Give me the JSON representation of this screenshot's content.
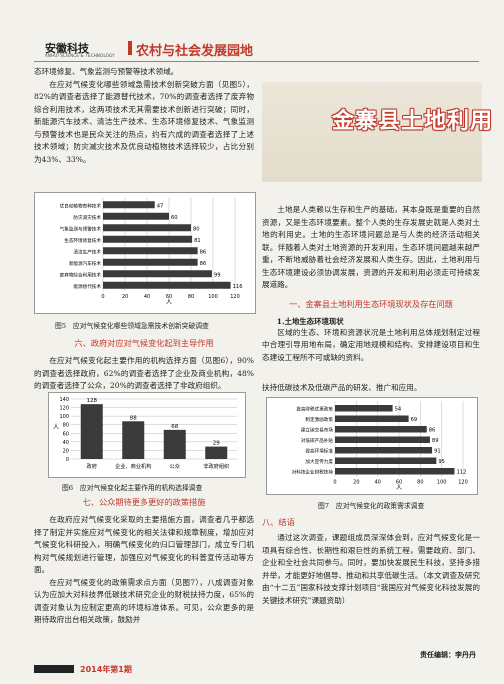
{
  "header": {
    "logo_cn": "安徽科技",
    "logo_en": "ANHUI SCIENCE & TECHNOLOGY",
    "section": "农村与社会发展园地"
  },
  "left_top": {
    "p1": "态环境修复、气象监测与预警等技术领域。",
    "p2": "在应对气候变化哪些领域急需技术创新突破方面（见图5），82%的调查者选择了能源替代技术，70%的调查者选择了废弃物综合利用技术，这两项技术无其需要技术创新进行突破；同时，新能源汽车技术、清洁生产技术、生态环境修复技术、气象监测与预警技术也是民众关注的热点，约有六成的调查者选择了上述技术领域；防灾减灾技术及优良动植物技术选择较少，占比分别为43%、33%。"
  },
  "chart5": {
    "caption": "图5　应对气候变化哪些领域急需技术创新突破调查",
    "axis_label": "人",
    "ticks": [
      "0",
      "20",
      "40",
      "60",
      "80",
      "100",
      "120"
    ]
  },
  "section6": {
    "heading": "六、政府对应对气候变化起到主导作用",
    "p1": "在应对气候变化起主要作用的机构选择方面（见图6），90%的调查者选择政府，62%的调查者选择了企业及商业机构，48%的调查者选择了公众，20%的调查者选择了非政府组织。"
  },
  "chart6": {
    "caption": "图6　应对气候变化起主要作用的机构选择调查",
    "axis_label": "人",
    "yticks": [
      "140",
      "120",
      "100",
      "80",
      "60",
      "40",
      "20",
      "0"
    ]
  },
  "section7": {
    "heading": "七、公众期待更多更好的政策措施",
    "p1": "在政府应对气候变化采取的主要措施方面，调查者几乎都选择了制定并实施应对气候变化的相关法律和规章制度，增加应对气候变化科研投入，明确气候变化的归口管理部门，成立专门机构对气候规划进行管理，加强应对气候变化的科普宣传活动等方面。",
    "p2": "在应对气候变化的政策需求点方面（见图7），八成调查对象认为应加大对科技界低碳技术研究企业的财税扶持力度，65%的调查对象认为应制定更高的环境标准体系。可见，公众更多的是期待政府出台相关政策，鼓励并"
  },
  "feature": {
    "title": "金寨县土地利用",
    "p1": "土地是人类赖以生存和生产的基础，其本身既是重要的自然资源，又是生态环境要素。整个人类的生存发展史就是人类对土地的利用史。土地的生态环境问题总是与人类的经济活动相关联。伴随着人类对土地资源的开发利用，生态环境问题越来越严重，不断地威胁着社会经济发展和人类生存。因此，土地利用与生态环境建设必须协调发展，资源的开发和利用必须走可持续发展道路。",
    "heading1": "一、金寨县土地利用生态环境现状及存在问题",
    "subheading1": "1.土地生态环境现状",
    "p2": "区域的生态、环境和资源状况是土地利用总体规划制定过程中合理引导用地布局，确定用地规模和结构、安排建设项目和生态建设工程所不可或缺的资料。"
  },
  "right_mid": {
    "p1": "扶持低碳技术及低碳产品的研发、推广和应用。"
  },
  "chart7": {
    "caption": "图7　应对气候变化的政策需求调查",
    "axis_label": "人",
    "ticks": [
      "0",
      "20",
      "40",
      "60",
      "80",
      "100",
      "120"
    ]
  },
  "section8": {
    "heading": "八、结语",
    "p1": "通过这次调查，课题组成员深深体会到，应对气候变化是一项具有综合性、长期性和艰巨性的系统工程，需要政府、部门、企业和全社会共同参与。同时，要加快发展民生科技，坚持多措并举，才能更好地倡导、推动和共享低碳生活。（本文调查及研究由“十二五”国家科技支撑计划项目“我国应对气候变化科技发展的关键技术研究”课题资助）",
    "editor": "责任编辑：李丹丹"
  },
  "footer": {
    "issue": "2014年第1期"
  },
  "chart_data": [
    {
      "type": "bar",
      "orientation": "horizontal",
      "categories": [
        "优良动植物育种技术",
        "防灾减灾技术",
        "气象监测与预警技术",
        "生态环境修复技术",
        "清洁生产技术",
        "新能源汽车技术",
        "废弃物综合利用技术",
        "能源替代技术"
      ],
      "values": [
        47,
        60,
        80,
        81,
        86,
        86,
        99,
        116
      ],
      "xlim": [
        0,
        120
      ],
      "xlabel": "人"
    },
    {
      "type": "bar",
      "categories": [
        "政府",
        "企业、商业机构",
        "公众",
        "非政府组织"
      ],
      "values": [
        128,
        88,
        68,
        29
      ],
      "ylim": [
        0,
        140
      ],
      "ylabel": "人"
    },
    {
      "type": "bar",
      "orientation": "horizontal",
      "categories": [
        "提高财税优惠政策",
        "制定激励政策",
        "建立碳交易市场",
        "对低碳产品补贴",
        "提高环境标准",
        "加大宣传力度",
        "对科技企业财税扶持"
      ],
      "values": [
        54,
        69,
        86,
        89,
        91,
        95,
        112
      ],
      "xlim": [
        0,
        120
      ],
      "xlabel": "人"
    }
  ]
}
